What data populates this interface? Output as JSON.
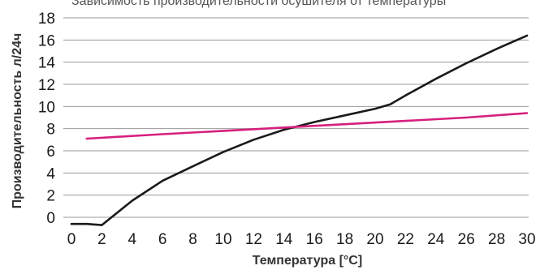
{
  "chart_data": {
    "type": "line",
    "title": "",
    "caption_top": "Зависимость производительности осушителя от температуры",
    "xlabel": "Температура [°C]",
    "ylabel": "Производительность л/24ч",
    "xlim": [
      0,
      30
    ],
    "ylim": [
      0,
      18
    ],
    "xticks": [
      0,
      2,
      4,
      6,
      8,
      10,
      12,
      14,
      16,
      18,
      20,
      22,
      24,
      26,
      28,
      30
    ],
    "yticks": [
      0,
      2,
      4,
      6,
      8,
      10,
      12,
      14,
      16,
      18
    ],
    "grid": {
      "horizontal": true,
      "vertical": false
    },
    "legend": "none",
    "series": [
      {
        "color": "#1a1a1a",
        "x": [
          0,
          1,
          2,
          4,
          6,
          8,
          10,
          12,
          14,
          16,
          18,
          20,
          21,
          22,
          24,
          26,
          28,
          30
        ],
        "y": [
          -0.6,
          -0.6,
          -0.7,
          1.5,
          3.3,
          4.6,
          5.9,
          7.0,
          7.9,
          8.6,
          9.2,
          9.8,
          10.2,
          11.0,
          12.5,
          13.9,
          15.2,
          16.4
        ]
      },
      {
        "color": "#d61f7d",
        "x": [
          1,
          6,
          10,
          14,
          18,
          22,
          26,
          30
        ],
        "y": [
          7.1,
          7.5,
          7.8,
          8.1,
          8.4,
          8.7,
          9.0,
          9.4
        ]
      }
    ]
  }
}
